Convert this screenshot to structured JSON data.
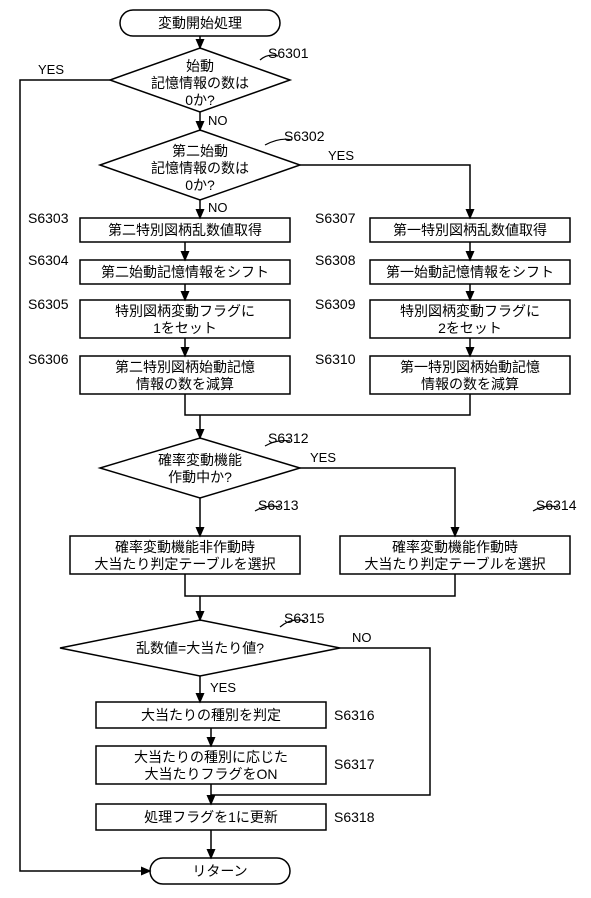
{
  "title": "変動開始処理",
  "return": "リターン",
  "nodes": {
    "d1": {
      "text": "始動\n記憶情報の数は\n0か?",
      "step": "S6301",
      "yes": "YES",
      "no": "NO"
    },
    "d2": {
      "text": "第二始動\n記憶情報の数は\n0か?",
      "step": "S6302",
      "yes": "YES",
      "no": "NO"
    },
    "p3": {
      "text": "第二特別図柄乱数値取得",
      "step": "S6303"
    },
    "p4": {
      "text": "第二始動記憶情報をシフト",
      "step": "S6304"
    },
    "p5": {
      "text": "特別図柄変動フラグに\n1をセット",
      "step": "S6305"
    },
    "p6": {
      "text": "第二特別図柄始動記憶\n情報の数を減算",
      "step": "S6306"
    },
    "p7": {
      "text": "第一特別図柄乱数値取得",
      "step": "S6307"
    },
    "p8": {
      "text": "第一始動記憶情報をシフト",
      "step": "S6308"
    },
    "p9": {
      "text": "特別図柄変動フラグに\n2をセット",
      "step": "S6309"
    },
    "p10": {
      "text": "第一特別図柄始動記憶\n情報の数を減算",
      "step": "S6310"
    },
    "d12": {
      "text": "確率変動機能\n作動中か?",
      "step": "S6312",
      "yes": "YES",
      "no": ""
    },
    "p13": {
      "text": "確率変動機能非作動時\n大当たり判定テーブルを選択",
      "step": "S6313"
    },
    "p14": {
      "text": "確率変動機能作動時\n大当たり判定テーブルを選択",
      "step": "S6314"
    },
    "d15": {
      "text": "乱数値=大当たり値?",
      "step": "S6315",
      "yes": "YES",
      "no": "NO"
    },
    "p16": {
      "text": "大当たりの種別を判定",
      "step": "S6316"
    },
    "p17": {
      "text": "大当たりの種別に応じた\n大当たりフラグをON",
      "step": "S6317"
    },
    "p18": {
      "text": "処理フラグを1に更新",
      "step": "S6318"
    }
  },
  "colors": {
    "stroke": "#000000",
    "fill": "#ffffff",
    "bg": "#ffffff"
  },
  "lineWidth": 1.5
}
